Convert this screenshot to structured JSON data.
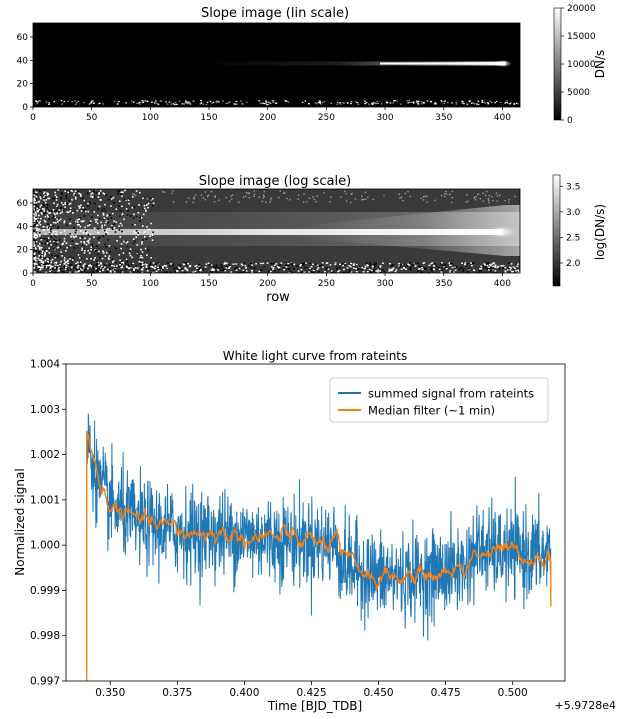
{
  "chart_data": [
    {
      "type": "heatmap",
      "title": "Slope image (lin scale)",
      "xlabel": "",
      "xlim": [
        0,
        415
      ],
      "ylim": [
        0,
        72
      ],
      "x_ticks": [
        "0",
        "50",
        "100",
        "150",
        "200",
        "250",
        "300",
        "350",
        "400"
      ],
      "y_ticks": [
        "0",
        "20",
        "40",
        "60"
      ],
      "colorbar": {
        "label": "DN/s",
        "range": [
          0,
          20000
        ],
        "ticks": [
          "0",
          "5000",
          "10000",
          "15000",
          "20000"
        ],
        "colormap": "gray"
      },
      "features": {
        "trace_row": 36,
        "trace_peak_col": 400,
        "trace_visible_from_col": 150
      }
    },
    {
      "type": "heatmap",
      "title": "Slope image (log scale)",
      "xlabel": "row",
      "xlim": [
        0,
        415
      ],
      "ylim": [
        0,
        72
      ],
      "x_ticks": [
        "0",
        "50",
        "100",
        "150",
        "200",
        "250",
        "300",
        "350",
        "400"
      ],
      "y_ticks": [
        "0",
        "20",
        "40",
        "60"
      ],
      "colorbar": {
        "label": "log(DN/s)",
        "range": [
          1.55,
          3.72
        ],
        "ticks": [
          "2.0",
          "2.5",
          "3.0",
          "3.5"
        ],
        "colormap": "gray"
      },
      "features": {
        "trace_row": 36,
        "trace_peak_col": 400
      }
    },
    {
      "type": "line",
      "title": "White light curve from rateints",
      "xlabel": "Time [BJD_TDB]",
      "ylabel": "Normalized signal",
      "x_offset_label": "+5.9728e4",
      "xlim": [
        0.3335,
        0.5195
      ],
      "ylim": [
        0.997,
        1.004
      ],
      "x_ticks": [
        "0.350",
        "0.375",
        "0.400",
        "0.425",
        "0.450",
        "0.475",
        "0.500"
      ],
      "y_ticks": [
        "0.997",
        "0.998",
        "0.999",
        "1.000",
        "1.001",
        "1.002",
        "1.003",
        "1.004"
      ],
      "legend_position": "top-right",
      "grid": false,
      "series": [
        {
          "name": "summed signal from rateints",
          "color": "#1f77b4",
          "x_range": [
            0.3412,
            0.5142
          ],
          "trend": [
            [
              0.342,
              1.0022
            ],
            [
              0.346,
              1.0013
            ],
            [
              0.35,
              1.0009
            ],
            [
              0.36,
              1.0005
            ],
            [
              0.375,
              1.0003
            ],
            [
              0.4,
              1.0002
            ],
            [
              0.42,
              1.0001
            ],
            [
              0.435,
              1.0
            ],
            [
              0.436,
              0.9996
            ],
            [
              0.45,
              0.9993
            ],
            [
              0.465,
              0.9993
            ],
            [
              0.482,
              0.9995
            ],
            [
              0.486,
              0.9999
            ],
            [
              0.5,
              0.9998
            ],
            [
              0.514,
              0.9998
            ]
          ],
          "noise_sigma": 0.00048
        },
        {
          "name": "Median filter (~1 min)",
          "color": "#ff7f0e",
          "x_range": [
            0.3412,
            0.5142
          ],
          "trend": [
            [
              0.342,
              1.0025
            ],
            [
              0.346,
              1.0013
            ],
            [
              0.35,
              1.0009
            ],
            [
              0.36,
              1.0005
            ],
            [
              0.375,
              1.0003
            ],
            [
              0.4,
              1.0002
            ],
            [
              0.42,
              1.0001
            ],
            [
              0.435,
              1.0
            ],
            [
              0.436,
              0.9996
            ],
            [
              0.45,
              0.9993
            ],
            [
              0.465,
              0.9993
            ],
            [
              0.482,
              0.9995
            ],
            [
              0.486,
              0.9999
            ],
            [
              0.5,
              0.9998
            ],
            [
              0.514,
              0.9998
            ]
          ],
          "noise_sigma": 7e-05
        }
      ]
    }
  ]
}
